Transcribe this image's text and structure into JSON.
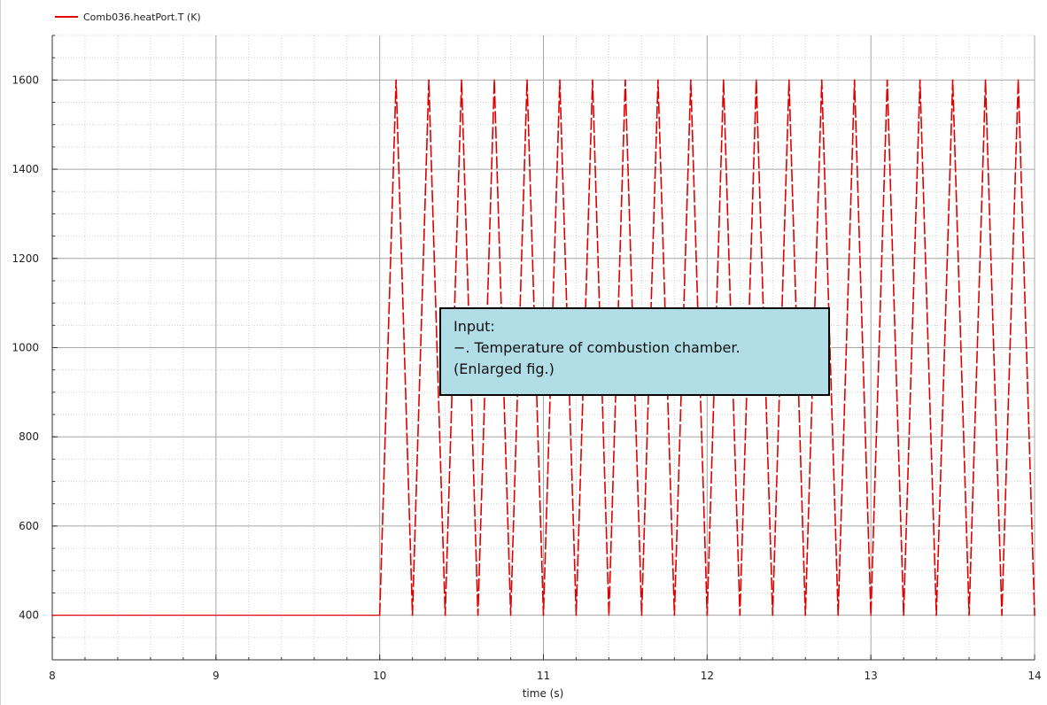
{
  "legend": {
    "label": "Comb036.heatPort.T (K)",
    "color": "#e00000"
  },
  "annotation": {
    "line1": "Input:",
    "line2": "−. Temperature of combustion chamber.",
    "line3": "(Enlarged fig.)"
  },
  "chart_data": {
    "type": "line",
    "xlabel": "time (s)",
    "ylabel": "",
    "xlim": [
      8,
      14
    ],
    "ylim": [
      300,
      1700
    ],
    "xticks": [
      8,
      9,
      10,
      11,
      12,
      13,
      14
    ],
    "yticks": [
      400,
      600,
      800,
      1000,
      1200,
      1400,
      1600
    ],
    "grid": true,
    "legend_position": "top-left",
    "series": [
      {
        "name": "Comb036.heatPort.T (K)",
        "color": "#e00000",
        "style": "solid before 10 s, dashed oscillation after",
        "x": [
          8,
          10,
          10.1,
          10.2,
          10.3,
          10.4,
          10.5,
          10.6,
          10.7,
          10.8,
          10.9,
          11.0,
          11.1,
          11.2,
          11.3,
          11.4,
          11.5,
          11.6,
          11.7,
          11.8,
          11.9,
          12.0,
          12.1,
          12.2,
          12.3,
          12.4,
          12.5,
          12.6,
          12.7,
          12.8,
          12.9,
          13.0,
          13.1,
          13.2,
          13.3,
          13.4,
          13.5,
          13.6,
          13.7,
          13.8,
          13.9,
          14.0
        ],
        "y": [
          400,
          400,
          1600,
          400,
          1600,
          400,
          1600,
          400,
          1600,
          400,
          1600,
          400,
          1600,
          400,
          1600,
          400,
          1600,
          400,
          1600,
          400,
          1600,
          400,
          1600,
          400,
          1600,
          400,
          1600,
          400,
          1600,
          400,
          1600,
          400,
          1600,
          400,
          1600,
          400,
          1600,
          400,
          1600,
          400,
          1600,
          400
        ]
      }
    ]
  }
}
